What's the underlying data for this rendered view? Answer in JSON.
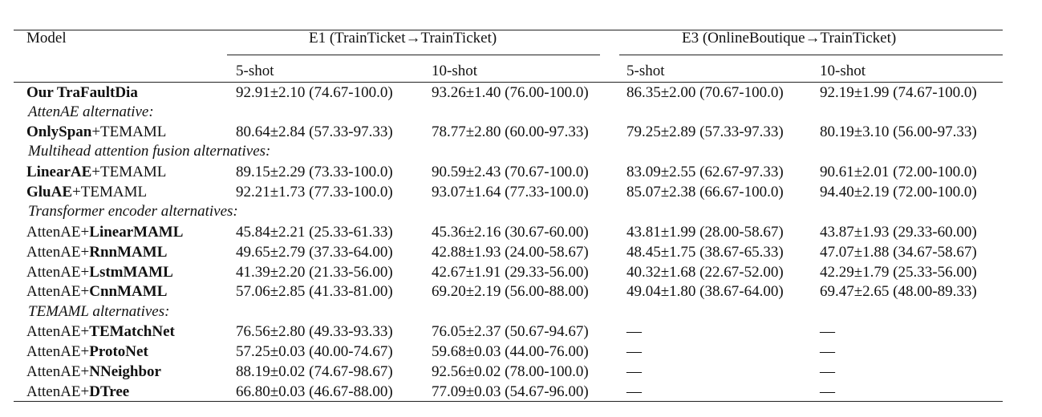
{
  "header": {
    "model": "Model",
    "e1": "E1 (TrainTicket→TrainTicket)",
    "e3": "E3 (OnlineBoutique→TrainTicket)",
    "shots": [
      "5-shot",
      "10-shot",
      "5-shot",
      "10-shot"
    ]
  },
  "rows": [
    {
      "name_a": "Our TraFaultDia",
      "name_b": "",
      "v": [
        "92.91±2.10 (74.67-100.0)",
        "93.26±1.40 (76.00-100.0)",
        "86.35±2.00 (70.67-100.0)",
        "92.19±1.99 (74.67-100.0)"
      ]
    },
    {
      "section": "AttenAE alternative:"
    },
    {
      "name_a": "OnlySpan",
      "name_b": "+TEMAML",
      "v": [
        "80.64±2.84 (57.33-97.33)",
        "78.77±2.80 (60.00-97.33)",
        "79.25±2.89 (57.33-97.33)",
        "80.19±3.10 (56.00-97.33)"
      ]
    },
    {
      "section": "Multihead attention fusion alternatives:"
    },
    {
      "name_a": "LinearAE",
      "name_b": "+TEMAML",
      "v": [
        "89.15±2.29 (73.33-100.0)",
        "90.59±2.43 (70.67-100.0)",
        "83.09±2.55 (62.67-97.33)",
        "90.61±2.01 (72.00-100.0)"
      ]
    },
    {
      "name_a": "GluAE",
      "name_b": "+TEMAML",
      "v": [
        "92.21±1.73 (77.33-100.0)",
        "93.07±1.64 (77.33-100.0)",
        "85.07±2.38 (66.67-100.0)",
        "94.40±2.19 (72.00-100.0)"
      ]
    },
    {
      "section": "Transformer encoder alternatives:"
    },
    {
      "name_a": "AttenAE+",
      "name_b": "LinearMAML",
      "v": [
        "45.84±2.21 (25.33-61.33)",
        "45.36±2.16 (30.67-60.00)",
        "43.81±1.99 (28.00-58.67)",
        "43.87±1.93 (29.33-60.00)"
      ]
    },
    {
      "name_a": "AttenAE+",
      "name_b": "RnnMAML",
      "v": [
        "49.65±2.79 (37.33-64.00)",
        "42.88±1.93 (24.00-58.67)",
        "48.45±1.75 (38.67-65.33)",
        "47.07±1.88 (34.67-58.67)"
      ]
    },
    {
      "name_a": "AttenAE+",
      "name_b": "LstmMAML",
      "v": [
        "41.39±2.20 (21.33-56.00)",
        "42.67±1.91 (29.33-56.00)",
        "40.32±1.68 (22.67-52.00)",
        "42.29±1.79 (25.33-56.00)"
      ]
    },
    {
      "name_a": "AttenAE+",
      "name_b": "CnnMAML",
      "v": [
        "57.06±2.85 (41.33-81.00)",
        "69.20±2.19 (56.00-88.00)",
        "49.04±1.80 (38.67-64.00)",
        "69.47±2.65 (48.00-89.33)"
      ]
    },
    {
      "section": "TEMAML alternatives:"
    },
    {
      "name_a": "AttenAE+",
      "name_b": "TEMatchNet",
      "v": [
        "76.56±2.80 (49.33-93.33)",
        "76.05±2.37 (50.67-94.67)",
        "—",
        "—"
      ]
    },
    {
      "name_a": "AttenAE+",
      "name_b": "ProtoNet",
      "v": [
        "57.25±0.03 (40.00-74.67)",
        "59.68±0.03 (44.00-76.00)",
        "—",
        "—"
      ]
    },
    {
      "name_a": "AttenAE+",
      "name_b": "NNeighbor",
      "v": [
        "88.19±0.02 (74.67-98.67)",
        "92.56±0.02 (78.00-100.0)",
        "—",
        "—"
      ]
    },
    {
      "name_a": "AttenAE+",
      "name_b": "DTree",
      "v": [
        "66.80±0.03 (46.67-88.00)",
        "77.09±0.03 (54.67-96.00)",
        "—",
        "—"
      ]
    }
  ]
}
